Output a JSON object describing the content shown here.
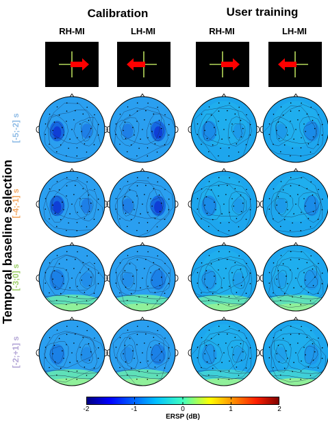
{
  "groups": [
    {
      "title": "Calibration",
      "columns": [
        "RH-MI",
        "LH-MI"
      ]
    },
    {
      "title": "User training",
      "columns": [
        "RH-MI",
        "LH-MI"
      ]
    }
  ],
  "cues": [
    {
      "direction": "right"
    },
    {
      "direction": "left"
    },
    {
      "direction": "right"
    },
    {
      "direction": "left"
    }
  ],
  "side_title": "Temporal baseline selection",
  "rows": [
    {
      "label": "[-5;-2] s",
      "color": "#8fbce6"
    },
    {
      "label": "[-4;-1] s",
      "color": "#f4a862"
    },
    {
      "label": "[-3;0] s",
      "color": "#9ecf6a"
    },
    {
      "label": "[-2;+1] s",
      "color": "#b3a6d6"
    }
  ],
  "colorbar": {
    "label": "ERSP (dB)",
    "ticks": [
      "-2",
      "-1",
      "0",
      "1",
      "2"
    ],
    "range": [
      -2,
      2
    ]
  },
  "colors": {
    "cue_background": "#000000",
    "cue_cross": "#b6d95a",
    "cue_arrow": "#ff0000",
    "head_outline": "#000000"
  }
}
